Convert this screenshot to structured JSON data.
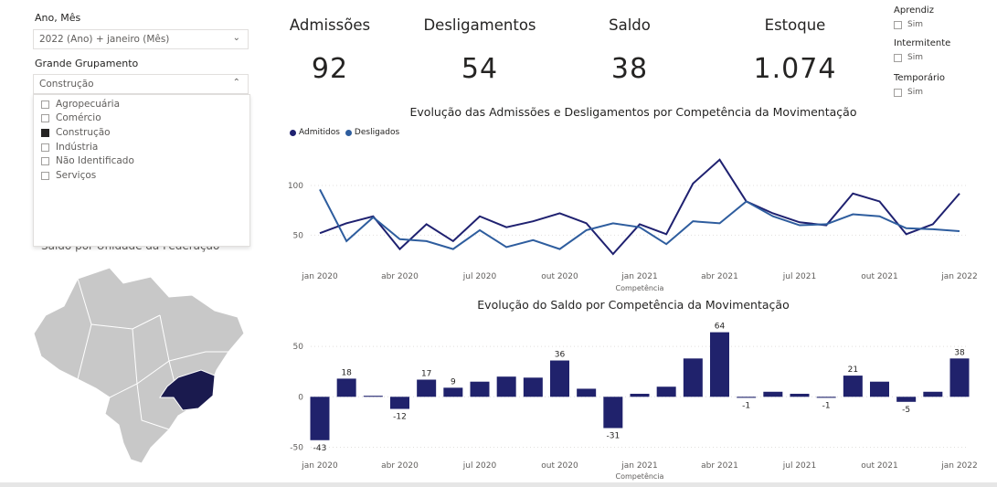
{
  "slicers": {
    "period": {
      "title": "Ano, Mês",
      "value": "2022 (Ano) + janeiro (Mês)"
    },
    "group": {
      "title": "Grande Grupamento",
      "value": "Construção",
      "options": [
        {
          "label": "Agropecuária",
          "checked": false
        },
        {
          "label": "Comércio",
          "checked": false
        },
        {
          "label": "Construção",
          "checked": true
        },
        {
          "label": "Indústria",
          "checked": false
        },
        {
          "label": "Não Identificado",
          "checked": false
        },
        {
          "label": "Serviços",
          "checked": false
        }
      ]
    }
  },
  "kpis": [
    {
      "label": "Admissões",
      "value": "92"
    },
    {
      "label": "Desligamentos",
      "value": "54"
    },
    {
      "label": "Saldo",
      "value": "38"
    },
    {
      "label": "Estoque",
      "value": "1.074"
    }
  ],
  "filters": [
    {
      "title": "Aprendiz",
      "option": "Sim"
    },
    {
      "title": "Intermitente",
      "option": "Sim"
    },
    {
      "title": "Temporário",
      "option": "Sim"
    }
  ],
  "map": {
    "title": "Saldo por Unidade da Federação",
    "highlight_color": "#1a1a4e",
    "base_color": "#c8c8c8"
  },
  "colors": {
    "admitidos": "#1f2170",
    "desligados": "#2e5d9e",
    "bars": "#20226c"
  },
  "chart_data": [
    {
      "type": "line",
      "title": "Evolução das Admissões e Desligamentos por Competência da Movimentação",
      "xlabel": "Competência",
      "ylabel": "",
      "x_ticks": [
        "jan 2020",
        "abr 2020",
        "jul 2020",
        "out 2020",
        "jan 2021",
        "abr 2021",
        "jul 2021",
        "out 2021",
        "jan 2022"
      ],
      "y_ticks": [
        50,
        100
      ],
      "ylim": [
        20,
        135
      ],
      "legend_position": "top-left",
      "series": [
        {
          "name": "Admitidos",
          "values": [
            52,
            62,
            69,
            36,
            61,
            44,
            69,
            58,
            64,
            72,
            62,
            31,
            61,
            51,
            102,
            126,
            84,
            72,
            63,
            60,
            92,
            84,
            51,
            61,
            92
          ]
        },
        {
          "name": "Desligados",
          "values": [
            96,
            44,
            68,
            46,
            44,
            36,
            55,
            38,
            45,
            36,
            55,
            62,
            58,
            41,
            64,
            62,
            84,
            69,
            60,
            61,
            71,
            69,
            57,
            56,
            54
          ]
        }
      ]
    },
    {
      "type": "bar",
      "title": "Evolução do Saldo por Competência da Movimentação",
      "xlabel": "Competência",
      "ylabel": "",
      "x_ticks": [
        "jan 2020",
        "abr 2020",
        "jul 2020",
        "out 2020",
        "jan 2021",
        "abr 2021",
        "jul 2021",
        "out 2021",
        "jan 2022"
      ],
      "y_ticks": [
        -50,
        0,
        50
      ],
      "ylim": [
        -55,
        70
      ],
      "values": [
        -43,
        18,
        1,
        -12,
        17,
        9,
        15,
        20,
        19,
        36,
        8,
        -31,
        3,
        10,
        38,
        64,
        -1,
        5,
        3,
        -1,
        21,
        15,
        -5,
        5,
        38
      ],
      "data_labels": [
        "-43",
        "18",
        "",
        "-12",
        "17",
        "9",
        "",
        "",
        "",
        "36",
        "",
        "-31",
        "",
        "",
        "",
        "64",
        "-1",
        "",
        "",
        "-1",
        "21",
        "",
        "-5",
        "",
        "38"
      ]
    }
  ]
}
